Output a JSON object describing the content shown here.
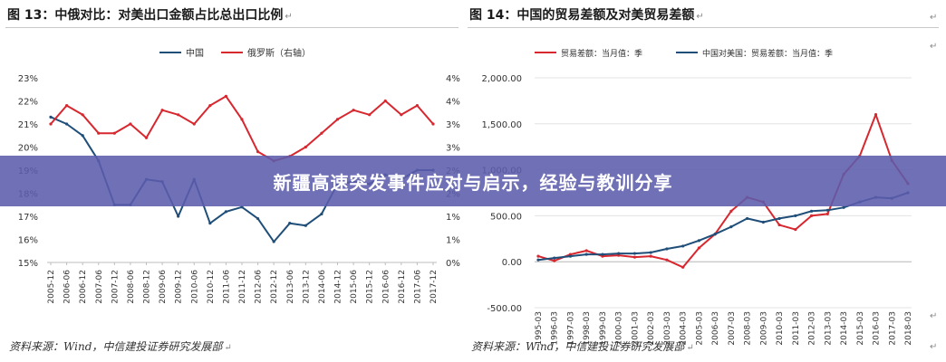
{
  "colors": {
    "red": "#d7272f",
    "blue": "#1f4e79",
    "banner": "#5c5cac"
  },
  "marks": {
    "edit": "↵"
  },
  "banner": {
    "text": "新疆高速突发事件应对与启示，经验与教训分享"
  },
  "left": {
    "title": "图 13：中俄对比：对美出口金额占比总出口比例",
    "source": "资料来源：Wind，中信建投证券研究发展部"
  },
  "right": {
    "title": "图 14：中国的贸易差额及对美贸易差额",
    "source": "资料来源：Wind，中信建投证券研究发展部"
  },
  "chart_data": [
    {
      "type": "line",
      "title": "图 13：中俄对比：对美出口金额占比总出口比例",
      "xlabel": "",
      "ylabel": "",
      "categories": [
        "2005-12",
        "2006-06",
        "2006-12",
        "2007-06",
        "2007-12",
        "2008-06",
        "2008-12",
        "2009-06",
        "2009-12",
        "2010-06",
        "2010-12",
        "2011-06",
        "2011-12",
        "2012-06",
        "2012-12",
        "2013-06",
        "2013-12",
        "2014-06",
        "2014-12",
        "2015-06",
        "2015-12",
        "2016-06",
        "2016-12",
        "2017-06",
        "2017-12"
      ],
      "y_left": {
        "ticks": [
          "15%",
          "16%",
          "17%",
          "18%",
          "19%",
          "20%",
          "21%",
          "22%",
          "23%"
        ],
        "range": [
          15,
          23
        ]
      },
      "y_right": {
        "ticks": [
          "0%",
          "1%",
          "1%",
          "2%",
          "2%",
          "3%",
          "3%",
          "4%",
          "4%"
        ],
        "range": [
          0,
          4
        ],
        "note": "右轴"
      },
      "legend_position": "top-center",
      "series": [
        {
          "name": "中国",
          "axis": "left",
          "color": "#1f4e79",
          "values": [
            21.3,
            21.0,
            20.5,
            19.4,
            17.5,
            17.5,
            18.6,
            18.5,
            17.0,
            18.6,
            16.7,
            17.2,
            17.4,
            16.9,
            15.9,
            16.7,
            16.6,
            17.1,
            18.4,
            18.5,
            18.4,
            18.8,
            18.6,
            19.0,
            19.0
          ]
        },
        {
          "name": "俄罗斯（右轴）",
          "axis": "right",
          "color": "#d7272f",
          "values": [
            3.0,
            3.4,
            3.2,
            2.8,
            2.8,
            3.0,
            2.7,
            3.3,
            3.2,
            3.0,
            3.4,
            3.6,
            3.1,
            2.4,
            2.2,
            2.3,
            2.5,
            2.8,
            3.1,
            3.3,
            3.2,
            3.5,
            3.2,
            3.4,
            3.0
          ]
        }
      ]
    },
    {
      "type": "line",
      "title": "图 14：中国的贸易差额及对美贸易差额",
      "xlabel": "",
      "ylabel": "",
      "categories": [
        "1995-03",
        "1996-03",
        "1997-03",
        "1998-03",
        "1999-03",
        "2000-03",
        "2001-03",
        "2002-03",
        "2003-03",
        "2004-03",
        "2005-03",
        "2006-03",
        "2007-03",
        "2008-03",
        "2009-03",
        "2010-03",
        "2011-03",
        "2012-03",
        "2013-03",
        "2014-03",
        "2015-03",
        "2016-03",
        "2017-03",
        "2018-03"
      ],
      "y_axis": {
        "ticks": [
          "-500.00",
          "0.00",
          "500.00",
          "1,000.00",
          "1,500.00",
          "2,000.00"
        ],
        "range": [
          -500,
          2000
        ]
      },
      "legend_position": "top-center",
      "series": [
        {
          "name": "贸易差额：当月值：季",
          "color": "#d7272f",
          "values": [
            60,
            10,
            80,
            120,
            60,
            70,
            50,
            60,
            20,
            -60,
            150,
            300,
            550,
            700,
            650,
            400,
            350,
            500,
            520,
            950,
            1150,
            1600,
            1100,
            850
          ]
        },
        {
          "name": "中国对美国：贸易差额：当月值：季",
          "color": "#1f4e79",
          "values": [
            20,
            40,
            60,
            80,
            80,
            90,
            90,
            100,
            140,
            170,
            230,
            300,
            380,
            470,
            430,
            470,
            500,
            550,
            560,
            590,
            650,
            700,
            690,
            750
          ]
        }
      ]
    }
  ]
}
